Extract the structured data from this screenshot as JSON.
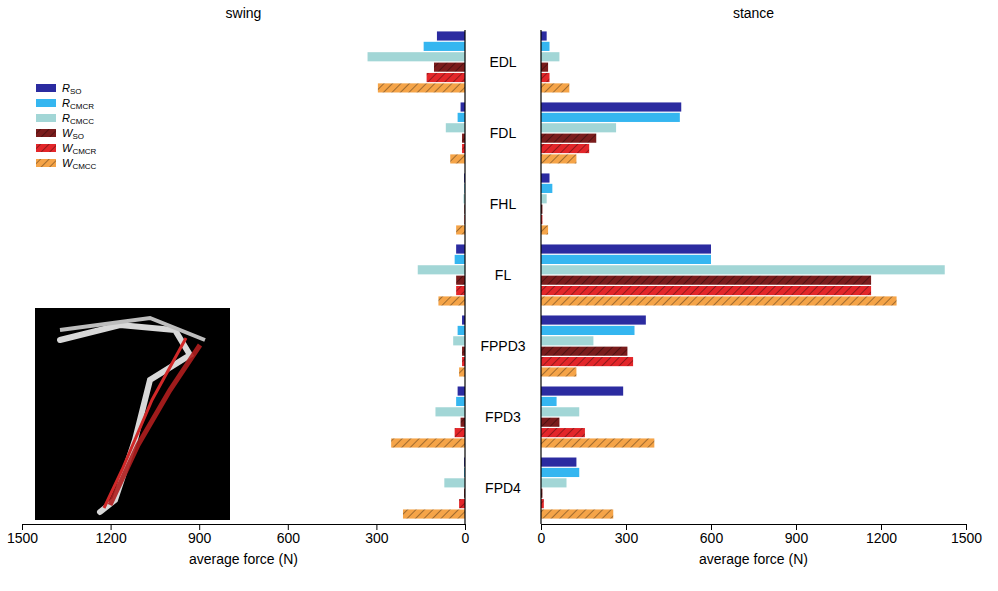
{
  "chart_data": [
    {
      "type": "bar",
      "title": "swing",
      "orientation": "horizontal",
      "legend": "upper left",
      "xlabel": "average force (N)",
      "categories": [
        "EDL",
        "FDL",
        "FHL",
        "FL",
        "FPPD3",
        "FPD3",
        "FPD4"
      ],
      "xlim": [
        1500,
        0
      ],
      "xticks": [
        1500,
        1200,
        900,
        600,
        300,
        0
      ],
      "series": [
        {
          "name": "RSO",
          "color": "#2b2ba0",
          "line_style": "solid",
          "values": [
            95,
            15,
            3,
            30,
            10,
            25,
            3
          ]
        },
        {
          "name": "RCMCR",
          "color": "#35b6f0",
          "line_style": "solid",
          "values": [
            140,
            25,
            2,
            35,
            25,
            30,
            3
          ]
        },
        {
          "name": "RCMCC",
          "color": "#a2d6d6",
          "line_style": "solid",
          "values": [
            330,
            65,
            5,
            160,
            40,
            100,
            70
          ]
        },
        {
          "name": "WSO",
          "color": "#7a1c1c",
          "line_style": "hatched",
          "values": [
            105,
            10,
            2,
            30,
            10,
            15,
            3
          ]
        },
        {
          "name": "WCMCR",
          "color": "#e3262a",
          "line_style": "hatched",
          "values": [
            130,
            10,
            2,
            30,
            10,
            35,
            20
          ]
        },
        {
          "name": "WCMCC",
          "color": "#f5a448",
          "line_style": "hatched",
          "values": [
            295,
            50,
            30,
            90,
            20,
            250,
            210
          ]
        }
      ]
    },
    {
      "type": "bar",
      "title": "stance",
      "orientation": "horizontal",
      "xlabel": "average force (N)",
      "categories": [
        "EDL",
        "FDL",
        "FHL",
        "FL",
        "FPPD3",
        "FPD3",
        "FPD4"
      ],
      "xlim": [
        0,
        1500
      ],
      "xticks": [
        0,
        300,
        600,
        900,
        1200,
        1500
      ],
      "series": [
        {
          "name": "RSO",
          "color": "#2b2ba0",
          "line_style": "solid",
          "values": [
            20,
            495,
            30,
            600,
            370,
            290,
            125
          ]
        },
        {
          "name": "RCMCR",
          "color": "#35b6f0",
          "line_style": "solid",
          "values": [
            30,
            490,
            40,
            600,
            330,
            55,
            135
          ]
        },
        {
          "name": "RCMCC",
          "color": "#a2d6d6",
          "line_style": "solid",
          "values": [
            65,
            265,
            20,
            1425,
            185,
            135,
            90
          ]
        },
        {
          "name": "WSO",
          "color": "#7a1c1c",
          "line_style": "hatched",
          "values": [
            25,
            195,
            5,
            1165,
            305,
            65,
            5
          ]
        },
        {
          "name": "WCMCR",
          "color": "#e3262a",
          "line_style": "hatched",
          "values": [
            30,
            170,
            5,
            1165,
            325,
            155,
            10
          ]
        },
        {
          "name": "WCMCC",
          "color": "#f5a448",
          "line_style": "hatched",
          "values": [
            100,
            125,
            25,
            1255,
            125,
            400,
            255
          ]
        }
      ]
    }
  ]
}
